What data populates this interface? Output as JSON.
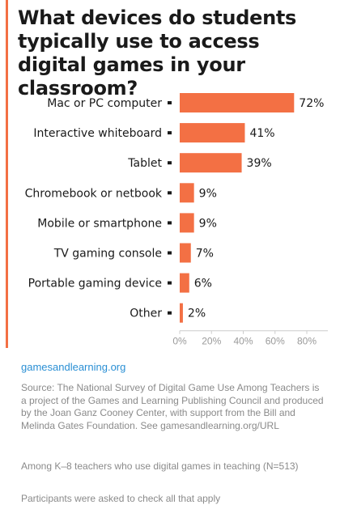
{
  "title": "What devices do students typically use to access digital games in your classroom?",
  "source_link": "gamesandlearning.org",
  "notes": {
    "source": "Source: The National Survey of Digital Game Use Among Teachers is a project of the Games and Learning Publishing Council and produced by the Joan Ganz Cooney Center, with support from the Bill and Melinda Gates Foundation. See gamesandlearning.org/URL",
    "base": "Among K–8 teachers who use digital games in teaching (N=513)",
    "check": "Participants were asked to check all that apply"
  },
  "colors": {
    "bar": "#f37044",
    "accent": "#f37044",
    "axis_text": "#9a9a9a",
    "link": "#2a8fd4"
  },
  "chart_data": {
    "type": "bar",
    "orientation": "horizontal",
    "categories": [
      "Mac or PC computer",
      "Interactive whiteboard",
      "Tablet",
      "Chromebook or netbook",
      "Mobile or smartphone",
      "TV gaming console",
      "Portable gaming device",
      "Other"
    ],
    "values": [
      72,
      41,
      39,
      9,
      9,
      7,
      6,
      2
    ],
    "value_labels": [
      "72%",
      "41%",
      "39%",
      "9%",
      "9%",
      "7%",
      "6%",
      "2%"
    ],
    "xlim": [
      0,
      80
    ],
    "ticks": [
      0,
      20,
      40,
      60,
      80
    ],
    "tick_labels": [
      "0%",
      "20%",
      "40%",
      "60%",
      "80%"
    ],
    "grid": false
  }
}
